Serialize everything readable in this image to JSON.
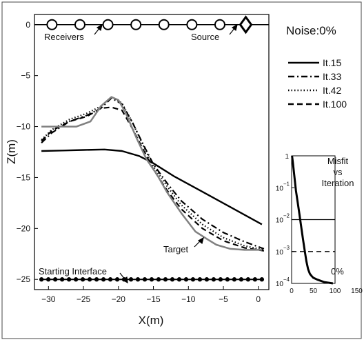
{
  "chart_data": [
    {
      "type": "line",
      "xlabel": "X(m)",
      "ylabel": "Z(m)",
      "xlim": [
        -32,
        1.5
      ],
      "ylim": [
        -26,
        1
      ],
      "xticks": [
        -30,
        -25,
        -20,
        -15,
        -10,
        -5,
        0
      ],
      "yticks": [
        0,
        -5,
        -10,
        -15,
        -20,
        -25
      ],
      "grid": false,
      "legend": "right",
      "noise_label": "Noise:0%",
      "annotations": {
        "receivers": "Receivers",
        "source": "Source",
        "target": "Target",
        "starting_interface": "Starting Interface"
      },
      "receivers": {
        "x": [
          -29.5,
          -25.5,
          -21.5,
          -17.5,
          -13.5,
          -9.5,
          -5.5
        ],
        "z": 0
      },
      "source": {
        "x": -1.8,
        "z": 0
      },
      "series": [
        {
          "name": "It.15",
          "style": "solid",
          "color": "#000000",
          "x": [
            -31,
            -28,
            -25,
            -22,
            -19.5,
            -17,
            -15,
            -12,
            -8,
            -4,
            0.5
          ],
          "y": [
            -12.4,
            -12.35,
            -12.3,
            -12.25,
            -12.4,
            -12.9,
            -13.6,
            -14.9,
            -16.4,
            -17.9,
            -19.6
          ]
        },
        {
          "name": "It.33",
          "style": "dashdot",
          "color": "#000000",
          "x": [
            -31,
            -29.5,
            -27,
            -24.5,
            -22.5,
            -21,
            -19.5,
            -18,
            -16.5,
            -15,
            -13,
            -11,
            -8,
            -5,
            -2,
            0.8
          ],
          "y": [
            -11.6,
            -10.6,
            -9.5,
            -8.9,
            -8.2,
            -7.2,
            -7.8,
            -9.6,
            -11.7,
            -13.7,
            -15.6,
            -17.3,
            -19.1,
            -20.4,
            -21.3,
            -22.0
          ]
        },
        {
          "name": "It.42",
          "style": "dotted",
          "color": "#000000",
          "x": [
            -31,
            -29.5,
            -27,
            -24.5,
            -22.5,
            -21,
            -19.5,
            -18,
            -16.5,
            -15,
            -13,
            -11,
            -8,
            -5,
            -2,
            0.8
          ],
          "y": [
            -11.3,
            -10.3,
            -9.3,
            -8.7,
            -8.0,
            -7.1,
            -7.7,
            -9.6,
            -11.8,
            -13.9,
            -15.9,
            -17.7,
            -19.6,
            -20.9,
            -21.7,
            -22.1
          ]
        },
        {
          "name": "It.100",
          "style": "dashed",
          "color": "#000000",
          "x": [
            -31,
            -29.5,
            -27,
            -24.5,
            -22.5,
            -21,
            -19.5,
            -18,
            -16.5,
            -15,
            -13,
            -11,
            -8,
            -5,
            -2,
            0.8
          ],
          "y": [
            -11.4,
            -10.4,
            -9.5,
            -9.0,
            -8.2,
            -8.1,
            -8.4,
            -10.2,
            -12.2,
            -14.2,
            -16.3,
            -18.1,
            -20.0,
            -21.2,
            -21.9,
            -22.2
          ]
        },
        {
          "name": "Target",
          "style": "solid",
          "color": "#808080",
          "x": [
            -31,
            -28.5,
            -26,
            -24,
            -22.5,
            -21,
            -20,
            -19,
            -17.5,
            -16,
            -14.5,
            -13,
            -11,
            -9,
            -7.2,
            -6,
            -4,
            -2,
            0.5
          ],
          "y": [
            -10,
            -10,
            -10,
            -9.5,
            -8.0,
            -7.1,
            -7.4,
            -8.6,
            -11.0,
            -13.2,
            -14.7,
            -16.5,
            -18.5,
            -20.3,
            -21.1,
            -21.6,
            -22.0,
            -22.1,
            -22.1
          ]
        },
        {
          "name": "Starting Interface",
          "style": "dotted-markers",
          "color": "#000000",
          "x": [
            -31,
            0.5
          ],
          "y": [
            -25,
            -25
          ]
        }
      ]
    },
    {
      "type": "line",
      "title": "Misfit\nvs\nIteration",
      "annotation": "0%",
      "xlim": [
        0,
        150
      ],
      "xticks": [
        0,
        50,
        100,
        150
      ],
      "ylim_log": [
        0.0001,
        1
      ],
      "yticks_exp": [
        0,
        -1,
        -2,
        -3,
        -4
      ],
      "ytick_labels": [
        "1",
        "10",
        "10",
        "10",
        "10"
      ],
      "ytick_exponents": [
        "",
        "-1",
        "-2",
        "-3",
        "-4"
      ],
      "series": [
        {
          "name": "misfit",
          "style": "solid",
          "x": [
            1,
            3,
            6,
            10,
            14,
            18,
            22,
            26,
            30,
            34,
            38,
            42,
            46,
            50,
            60,
            75,
            95
          ],
          "y": [
            1,
            0.6,
            0.25,
            0.08,
            0.035,
            0.015,
            0.006,
            0.0025,
            0.0011,
            0.0005,
            0.00028,
            0.0002,
            0.00017,
            0.00015,
            0.00013,
            0.00011,
            0.0001
          ]
        },
        {
          "name": "threshold-1",
          "style": "solid",
          "x": [
            0,
            100
          ],
          "y": [
            0.01,
            0.01
          ]
        },
        {
          "name": "threshold-2",
          "style": "dashed",
          "x": [
            0,
            100
          ],
          "y": [
            0.001,
            0.001
          ]
        }
      ]
    }
  ]
}
